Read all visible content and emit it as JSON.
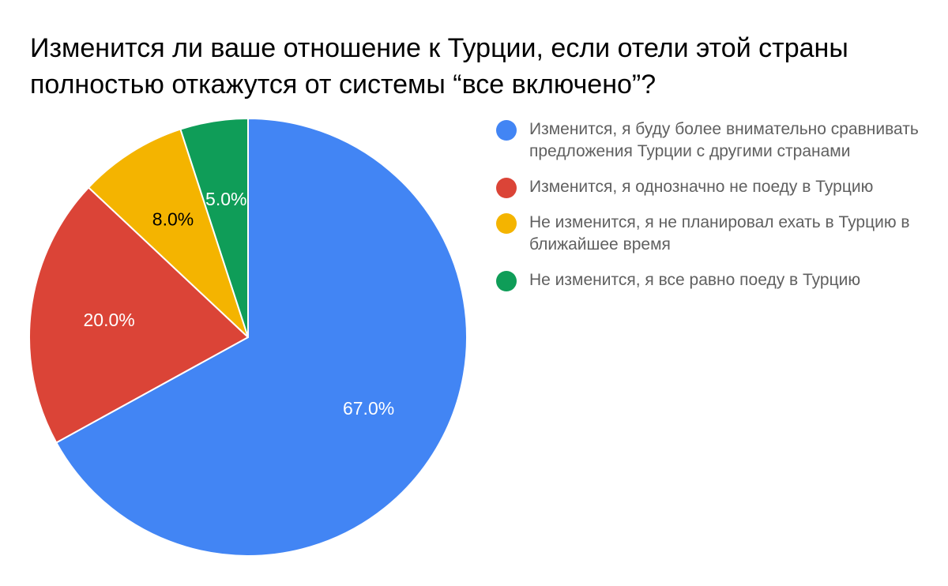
{
  "chart_data": {
    "type": "pie",
    "title": "Изменится ли ваше отношение к Турции, если отели этой страны\nполностью откажутся от системы “все включено”?",
    "slices": [
      {
        "name": "Изменится, я буду более внимательно сравнивать предложения Турции с другими странами",
        "value": 67.0,
        "label": "67.0%",
        "color": "#4285f4",
        "label_color": "#ffffff"
      },
      {
        "name": "Изменится, я однозначно не поеду в Турцию",
        "value": 20.0,
        "label": "20.0%",
        "color": "#db4437",
        "label_color": "#ffffff"
      },
      {
        "name": "Не изменится, я не планировал ехать в Турцию в ближайшее время",
        "value": 8.0,
        "label": "8.0%",
        "color": "#f4b400",
        "label_color": "#000000"
      },
      {
        "name": "Не изменится, я все равно поеду в Турцию",
        "value": 5.0,
        "label": "5.0%",
        "color": "#0f9d58",
        "label_color": "#ffffff"
      }
    ],
    "legend_position": "right",
    "start_angle": "top",
    "direction": "clockwise"
  }
}
